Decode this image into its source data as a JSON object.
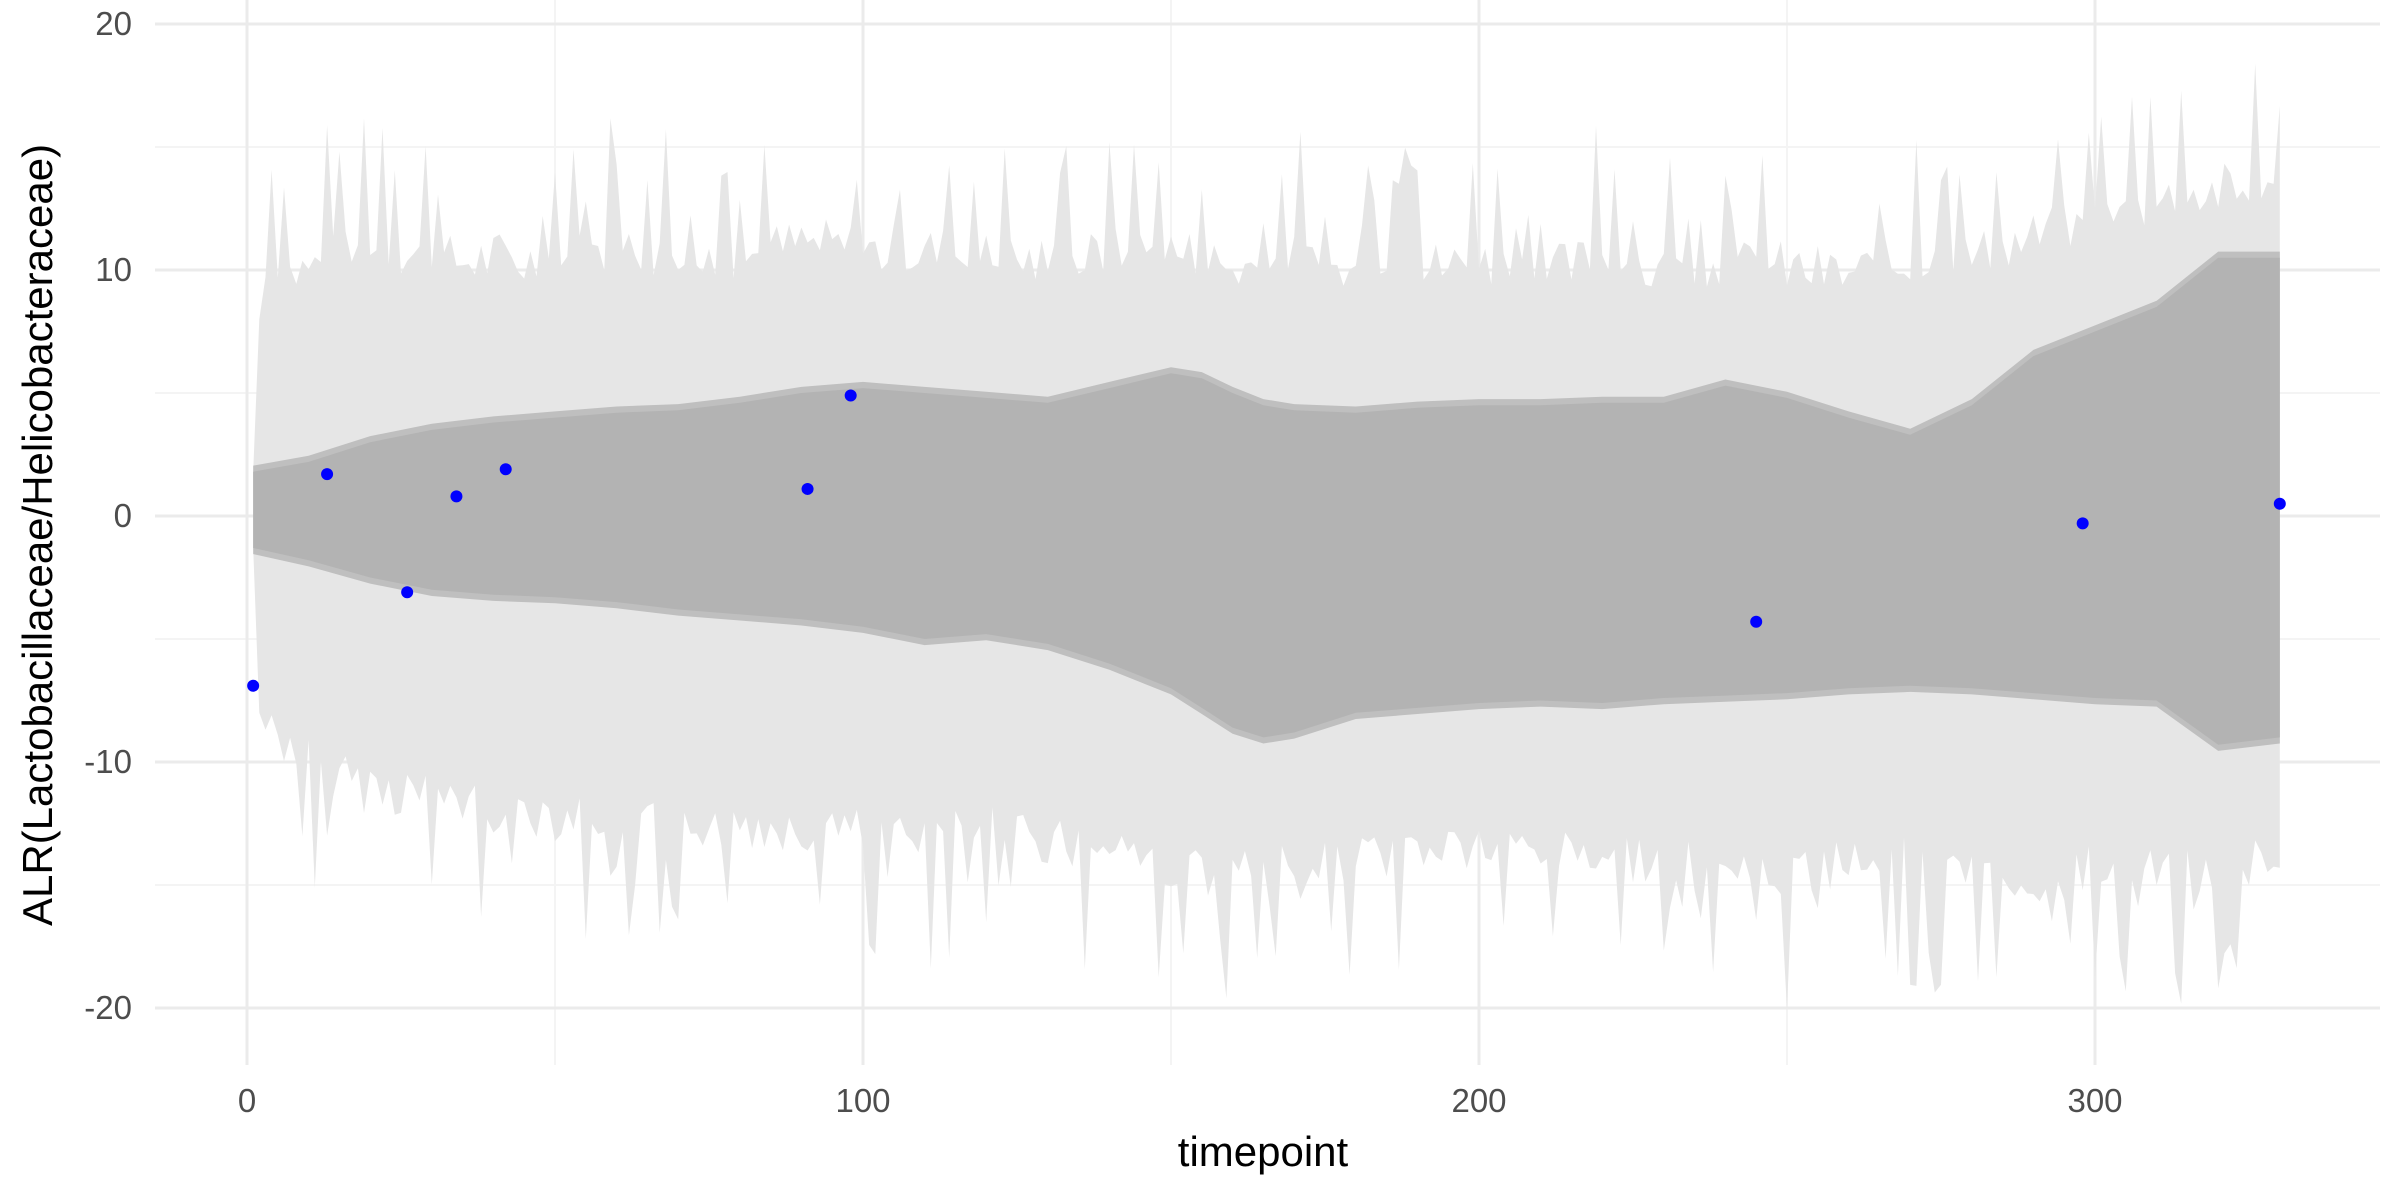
{
  "chart_data": {
    "type": "area",
    "xlabel": "timepoint",
    "ylabel": "ALR(Lactobacillaceae/Helicobacteraceae)",
    "xlim": [
      -15,
      347
    ],
    "ylim": [
      -22,
      20
    ],
    "x_ticks": [
      0,
      100,
      200,
      300
    ],
    "y_ticks": [
      -20,
      -10,
      0,
      10,
      20
    ],
    "grid": true,
    "legend": "none",
    "colors": {
      "outer_band": "#e6e6e6",
      "inner_band_edge": "#bfbfbf",
      "inner_band": "#b3b3b3",
      "points": "#0000ff",
      "grid_major": "#ebebeb",
      "grid_minor": "#f4f4f4"
    },
    "inner_band": {
      "x": [
        1,
        10,
        20,
        30,
        40,
        50,
        60,
        70,
        80,
        90,
        100,
        110,
        120,
        130,
        140,
        150,
        155,
        160,
        165,
        170,
        180,
        190,
        200,
        210,
        220,
        230,
        240,
        250,
        260,
        270,
        280,
        290,
        300,
        310,
        320,
        330
      ],
      "upper": [
        1.8,
        2.2,
        3.0,
        3.5,
        3.8,
        4.0,
        4.2,
        4.3,
        4.6,
        5.0,
        5.2,
        5.0,
        4.8,
        4.6,
        5.2,
        5.8,
        5.6,
        5.0,
        4.5,
        4.3,
        4.2,
        4.4,
        4.5,
        4.5,
        4.6,
        4.6,
        5.3,
        4.8,
        4.0,
        3.3,
        4.5,
        6.5,
        7.5,
        8.5,
        10.5,
        10.5
      ],
      "lower": [
        -1.3,
        -1.8,
        -2.5,
        -3.0,
        -3.2,
        -3.3,
        -3.5,
        -3.8,
        -4.0,
        -4.2,
        -4.5,
        -5.0,
        -4.8,
        -5.2,
        -6.0,
        -7.0,
        -7.8,
        -8.6,
        -9.0,
        -8.8,
        -8.0,
        -7.8,
        -7.6,
        -7.5,
        -7.6,
        -7.4,
        -7.3,
        -7.2,
        -7.0,
        -6.9,
        -7.0,
        -7.2,
        -7.4,
        -7.5,
        -9.3,
        -9.0
      ]
    },
    "outer_band": {
      "x": [
        1,
        2,
        3,
        10,
        20,
        30,
        40,
        50,
        60,
        70,
        80,
        90,
        100,
        110,
        120,
        130,
        140,
        150,
        160,
        170,
        180,
        190,
        200,
        210,
        220,
        230,
        240,
        250,
        260,
        270,
        280,
        290,
        300,
        310,
        320,
        330
      ],
      "upper": [
        1.8,
        8.0,
        9.5,
        9.8,
        10.5,
        10.0,
        10.2,
        10.0,
        10.5,
        10.0,
        10.2,
        10.8,
        10.5,
        10.5,
        10.2,
        10.0,
        10.3,
        10.5,
        9.8,
        10.0,
        9.5,
        9.8,
        10.0,
        9.5,
        10.2,
        9.6,
        9.8,
        9.8,
        9.5,
        10.0,
        10.2,
        11.0,
        11.5,
        12.5,
        13.0,
        12.5
      ],
      "lower": [
        -1.3,
        -8.0,
        -8.3,
        -9.5,
        -10.8,
        -11.0,
        -11.5,
        -11.8,
        -11.8,
        -12.0,
        -12.3,
        -12.2,
        -12.0,
        -12.5,
        -12.2,
        -12.8,
        -13.0,
        -13.8,
        -14.2,
        -13.5,
        -13.5,
        -13.2,
        -13.2,
        -13.2,
        -13.4,
        -13.6,
        -14.0,
        -14.2,
        -13.6,
        -13.4,
        -13.6,
        -14.6,
        -13.8,
        -13.8,
        -14.0,
        -13.5
      ]
    },
    "points": {
      "x": [
        1,
        13,
        26,
        34,
        42,
        91,
        98,
        245,
        298,
        330
      ],
      "y": [
        -6.9,
        1.7,
        -3.1,
        0.8,
        1.9,
        1.1,
        4.9,
        -4.3,
        -0.3,
        0.5
      ]
    }
  }
}
